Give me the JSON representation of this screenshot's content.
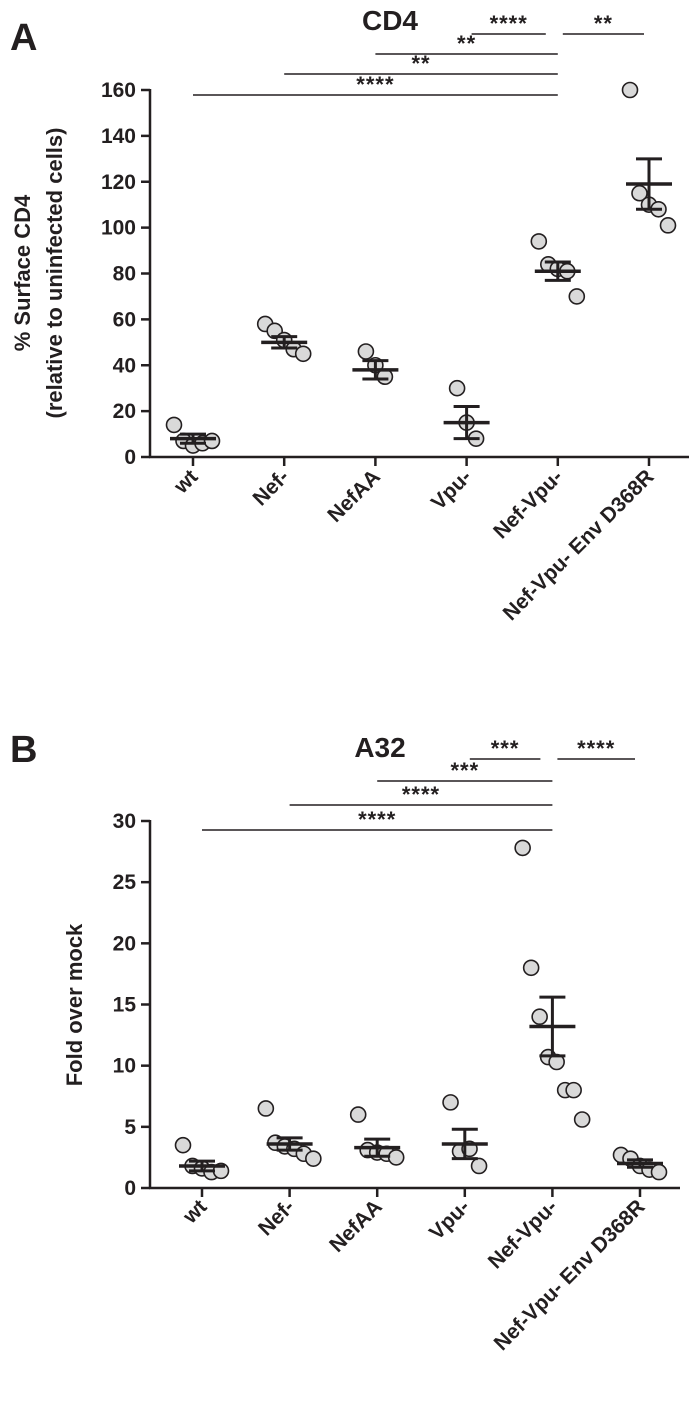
{
  "chart_data": [
    {
      "type": "scatter",
      "panel_label": "A",
      "title": "CD4",
      "ylabel_line1": "% Surface  CD4",
      "ylabel_line2": "(relative to uninfected cells)",
      "xlabel": "",
      "ylim": [
        0,
        160
      ],
      "yticks": [
        0,
        20,
        40,
        60,
        80,
        100,
        120,
        140,
        160
      ],
      "categories": [
        "wt",
        "Nef-",
        "NefAA",
        "Vpu-",
        "Nef-Vpu-",
        "Nef-Vpu- Env D368R"
      ],
      "points": [
        [
          14,
          7,
          5,
          6,
          7
        ],
        [
          58,
          55,
          51,
          47,
          45
        ],
        [
          46,
          40,
          35
        ],
        [
          30,
          15,
          8
        ],
        [
          94,
          84,
          82,
          81,
          70
        ],
        [
          160,
          115,
          110,
          108,
          101
        ]
      ],
      "means": [
        8,
        50,
        38,
        15,
        81,
        119
      ],
      "sem": [
        2,
        2.5,
        4,
        7,
        4,
        11
      ],
      "comparisons": [
        {
          "from": "Vpu-",
          "to": "Nef-Vpu-",
          "label": "****"
        },
        {
          "from": "Nef-Vpu-",
          "to": "Nef-Vpu- Env D368R",
          "label": "**"
        },
        {
          "from": "NefAA",
          "to": "Nef-Vpu-",
          "label": "**"
        },
        {
          "from": "Nef-",
          "to": "Nef-Vpu-",
          "label": "**"
        },
        {
          "from": "wt",
          "to": "Nef-Vpu-",
          "label": "****"
        }
      ],
      "grid": false,
      "legend": "none"
    },
    {
      "type": "scatter",
      "panel_label": "B",
      "title": "A32",
      "ylabel_line1": "Fold over mock",
      "ylabel_line2": "",
      "xlabel": "",
      "ylim": [
        0,
        30
      ],
      "yticks": [
        0,
        5,
        10,
        15,
        20,
        25,
        30
      ],
      "categories": [
        "wt",
        "Nef-",
        "NefAA",
        "Vpu-",
        "Nef-Vpu-",
        "Nef-Vpu- Env D368R"
      ],
      "points": [
        [
          3.5,
          1.8,
          1.6,
          1.3,
          1.4
        ],
        [
          6.5,
          3.7,
          3.4,
          3.2,
          2.8,
          2.4
        ],
        [
          6.0,
          3.1,
          2.9,
          2.8,
          2.5
        ],
        [
          7.0,
          3.0,
          3.2,
          1.8
        ],
        [
          27.8,
          18.0,
          14.0,
          10.7,
          10.3,
          8.0,
          8.0,
          5.6
        ],
        [
          2.7,
          2.4,
          1.8,
          1.5,
          1.3
        ]
      ],
      "means": [
        1.8,
        3.6,
        3.3,
        3.6,
        13.2,
        2.0
      ],
      "sem": [
        0.4,
        0.5,
        0.7,
        1.2,
        2.4,
        0.3
      ],
      "comparisons": [
        {
          "from": "Vpu-",
          "to": "Nef-Vpu-",
          "label": "***"
        },
        {
          "from": "Nef-Vpu-",
          "to": "Nef-Vpu- Env D368R",
          "label": "****"
        },
        {
          "from": "NefAA",
          "to": "Nef-Vpu-",
          "label": "***"
        },
        {
          "from": "Nef-",
          "to": "Nef-Vpu-",
          "label": "****"
        },
        {
          "from": "wt",
          "to": "Nef-Vpu-",
          "label": "****"
        }
      ],
      "grid": false,
      "legend": "none"
    }
  ]
}
